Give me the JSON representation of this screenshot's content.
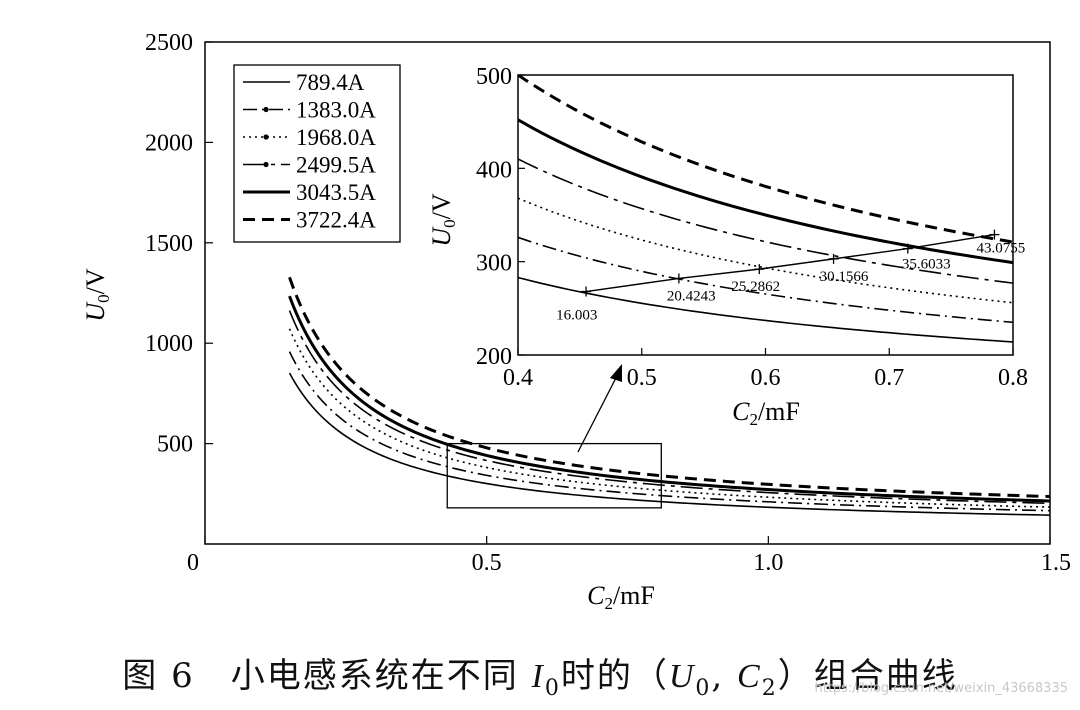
{
  "chart_data": [
    {
      "type": "line",
      "role": "main",
      "title": "",
      "xlabel": "C₂/mF",
      "ylabel": "U₀/V",
      "xlim": [
        0,
        1.5
      ],
      "ylim": [
        0,
        2500
      ],
      "xticks": [
        "0",
        "0.5",
        "1.0",
        "1.5"
      ],
      "yticks": [
        "500",
        "1000",
        "1500",
        "2000",
        "2500"
      ],
      "legend": {
        "position": "top-left",
        "entries": [
          "789.4A",
          "1383.0A",
          "1968.0A",
          "2499.5A",
          "3043.5A",
          "3722.4A"
        ]
      },
      "series": [
        {
          "name": "789.4A",
          "style": "solid-thin",
          "k": 118,
          "b": 65
        },
        {
          "name": "1383.0A",
          "style": "dash-dot",
          "k": 132,
          "b": 78
        },
        {
          "name": "1968.0A",
          "style": "dotted",
          "k": 148,
          "b": 85
        },
        {
          "name": "2499.5A",
          "style": "dash-dot-thin",
          "k": 160,
          "b": 96
        },
        {
          "name": "3043.5A",
          "style": "solid-thick",
          "k": 170,
          "b": 101
        },
        {
          "name": "3722.4A",
          "style": "dashed-thick",
          "k": 182,
          "b": 115
        }
      ],
      "x_start": 0.15,
      "x_end": 1.5,
      "zoom_box": {
        "x": [
          0.43,
          0.81
        ],
        "y": [
          180,
          500
        ]
      }
    },
    {
      "type": "line",
      "role": "inset",
      "xlabel": "C₂/mF",
      "ylabel": "U₀/V",
      "xlim": [
        0.4,
        0.8
      ],
      "ylim": [
        200,
        500
      ],
      "xticks": [
        "0.4",
        "0.5",
        "0.6",
        "0.7",
        "0.8"
      ],
      "yticks": [
        "200",
        "300",
        "400",
        "500"
      ],
      "series_curves": [
        {
          "name": "789.4A",
          "x": [
            0.4,
            0.8
          ],
          "y": [
            283,
            214
          ]
        },
        {
          "name": "1383.0A",
          "x": [
            0.4,
            0.8
          ],
          "y": [
            326,
            235
          ]
        },
        {
          "name": "1968.0A",
          "x": [
            0.4,
            0.8
          ],
          "y": [
            368,
            256
          ]
        },
        {
          "name": "2499.5A",
          "x": [
            0.4,
            0.8
          ],
          "y": [
            410,
            277
          ]
        },
        {
          "name": "3043.5A",
          "x": [
            0.4,
            0.8
          ],
          "y": [
            452,
            299
          ]
        },
        {
          "name": "3722.4A",
          "x": [
            0.4,
            0.8
          ],
          "y": [
            500,
            321
          ]
        }
      ],
      "operating_line": {
        "points": [
          {
            "x": 0.455,
            "y": 268,
            "label": "16.003"
          },
          {
            "x": 0.53,
            "y": 282,
            "label": "20.4243"
          },
          {
            "x": 0.595,
            "y": 292,
            "label": "25.2862"
          },
          {
            "x": 0.655,
            "y": 303,
            "label": "30.1566"
          },
          {
            "x": 0.715,
            "y": 314,
            "label": "35.6033"
          },
          {
            "x": 0.785,
            "y": 329,
            "label": "43.0755"
          }
        ]
      }
    }
  ],
  "caption": {
    "prefix": "图 6　小电感系统在不同",
    "var_i": "I",
    "sub_i": "0",
    "mid": "时的（",
    "var_u": "U",
    "sub_u": "0",
    "sep": ", ",
    "var_c": "C",
    "sub_c": "2",
    "suffix": "）组合曲线"
  },
  "watermark": "https://blog.csdn.net/weixin_43668335"
}
